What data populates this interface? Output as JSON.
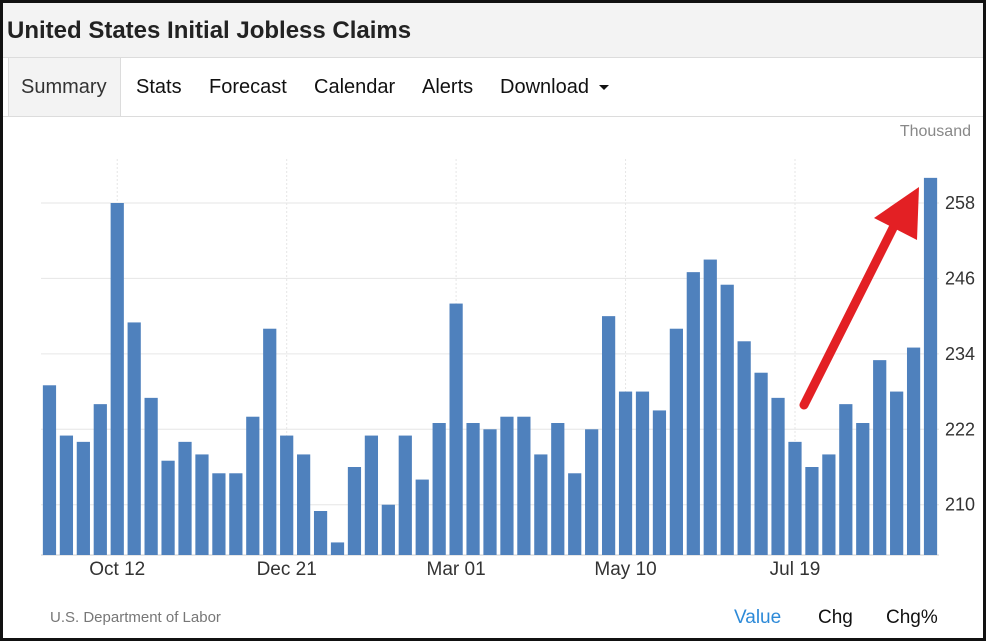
{
  "header": {
    "title": "United States Initial Jobless Claims"
  },
  "tabs": [
    {
      "label": "Summary",
      "active": true
    },
    {
      "label": "Stats"
    },
    {
      "label": "Forecast"
    },
    {
      "label": "Calendar"
    },
    {
      "label": "Alerts"
    },
    {
      "label": "Download",
      "has_dropdown": true
    }
  ],
  "unit_label": "Thousand",
  "source": "U.S. Department of Labor",
  "view_modes": [
    {
      "label": "Value",
      "active": true
    },
    {
      "label": "Chg"
    },
    {
      "label": "Chg%"
    }
  ],
  "colors": {
    "bar": "#4f81bd",
    "active_link": "#2d8ad8",
    "arrow": "#e32024"
  },
  "chart_data": {
    "type": "bar",
    "x_tick_labels": [
      "Oct 12",
      "Dec 21",
      "Mar 01",
      "May 10",
      "Jul 19"
    ],
    "values": [
      229,
      221,
      220,
      226,
      258,
      239,
      227,
      217,
      220,
      218,
      215,
      215,
      224,
      238,
      221,
      218,
      209,
      204,
      216,
      221,
      210,
      221,
      214,
      223,
      242,
      223,
      222,
      224,
      224,
      218,
      223,
      215,
      222,
      240,
      228,
      228,
      225,
      238,
      247,
      249,
      245,
      236,
      231,
      227,
      220,
      216,
      218,
      226,
      223,
      233,
      228,
      235,
      262
    ],
    "x_tick_bar_index": [
      4,
      14,
      24,
      34,
      44
    ],
    "y_ticks": [
      210,
      222,
      234,
      246,
      258
    ],
    "ylim": [
      202,
      265
    ],
    "grid": true,
    "annotation": {
      "type": "arrow",
      "color": "red",
      "points_to": "last bar"
    }
  }
}
